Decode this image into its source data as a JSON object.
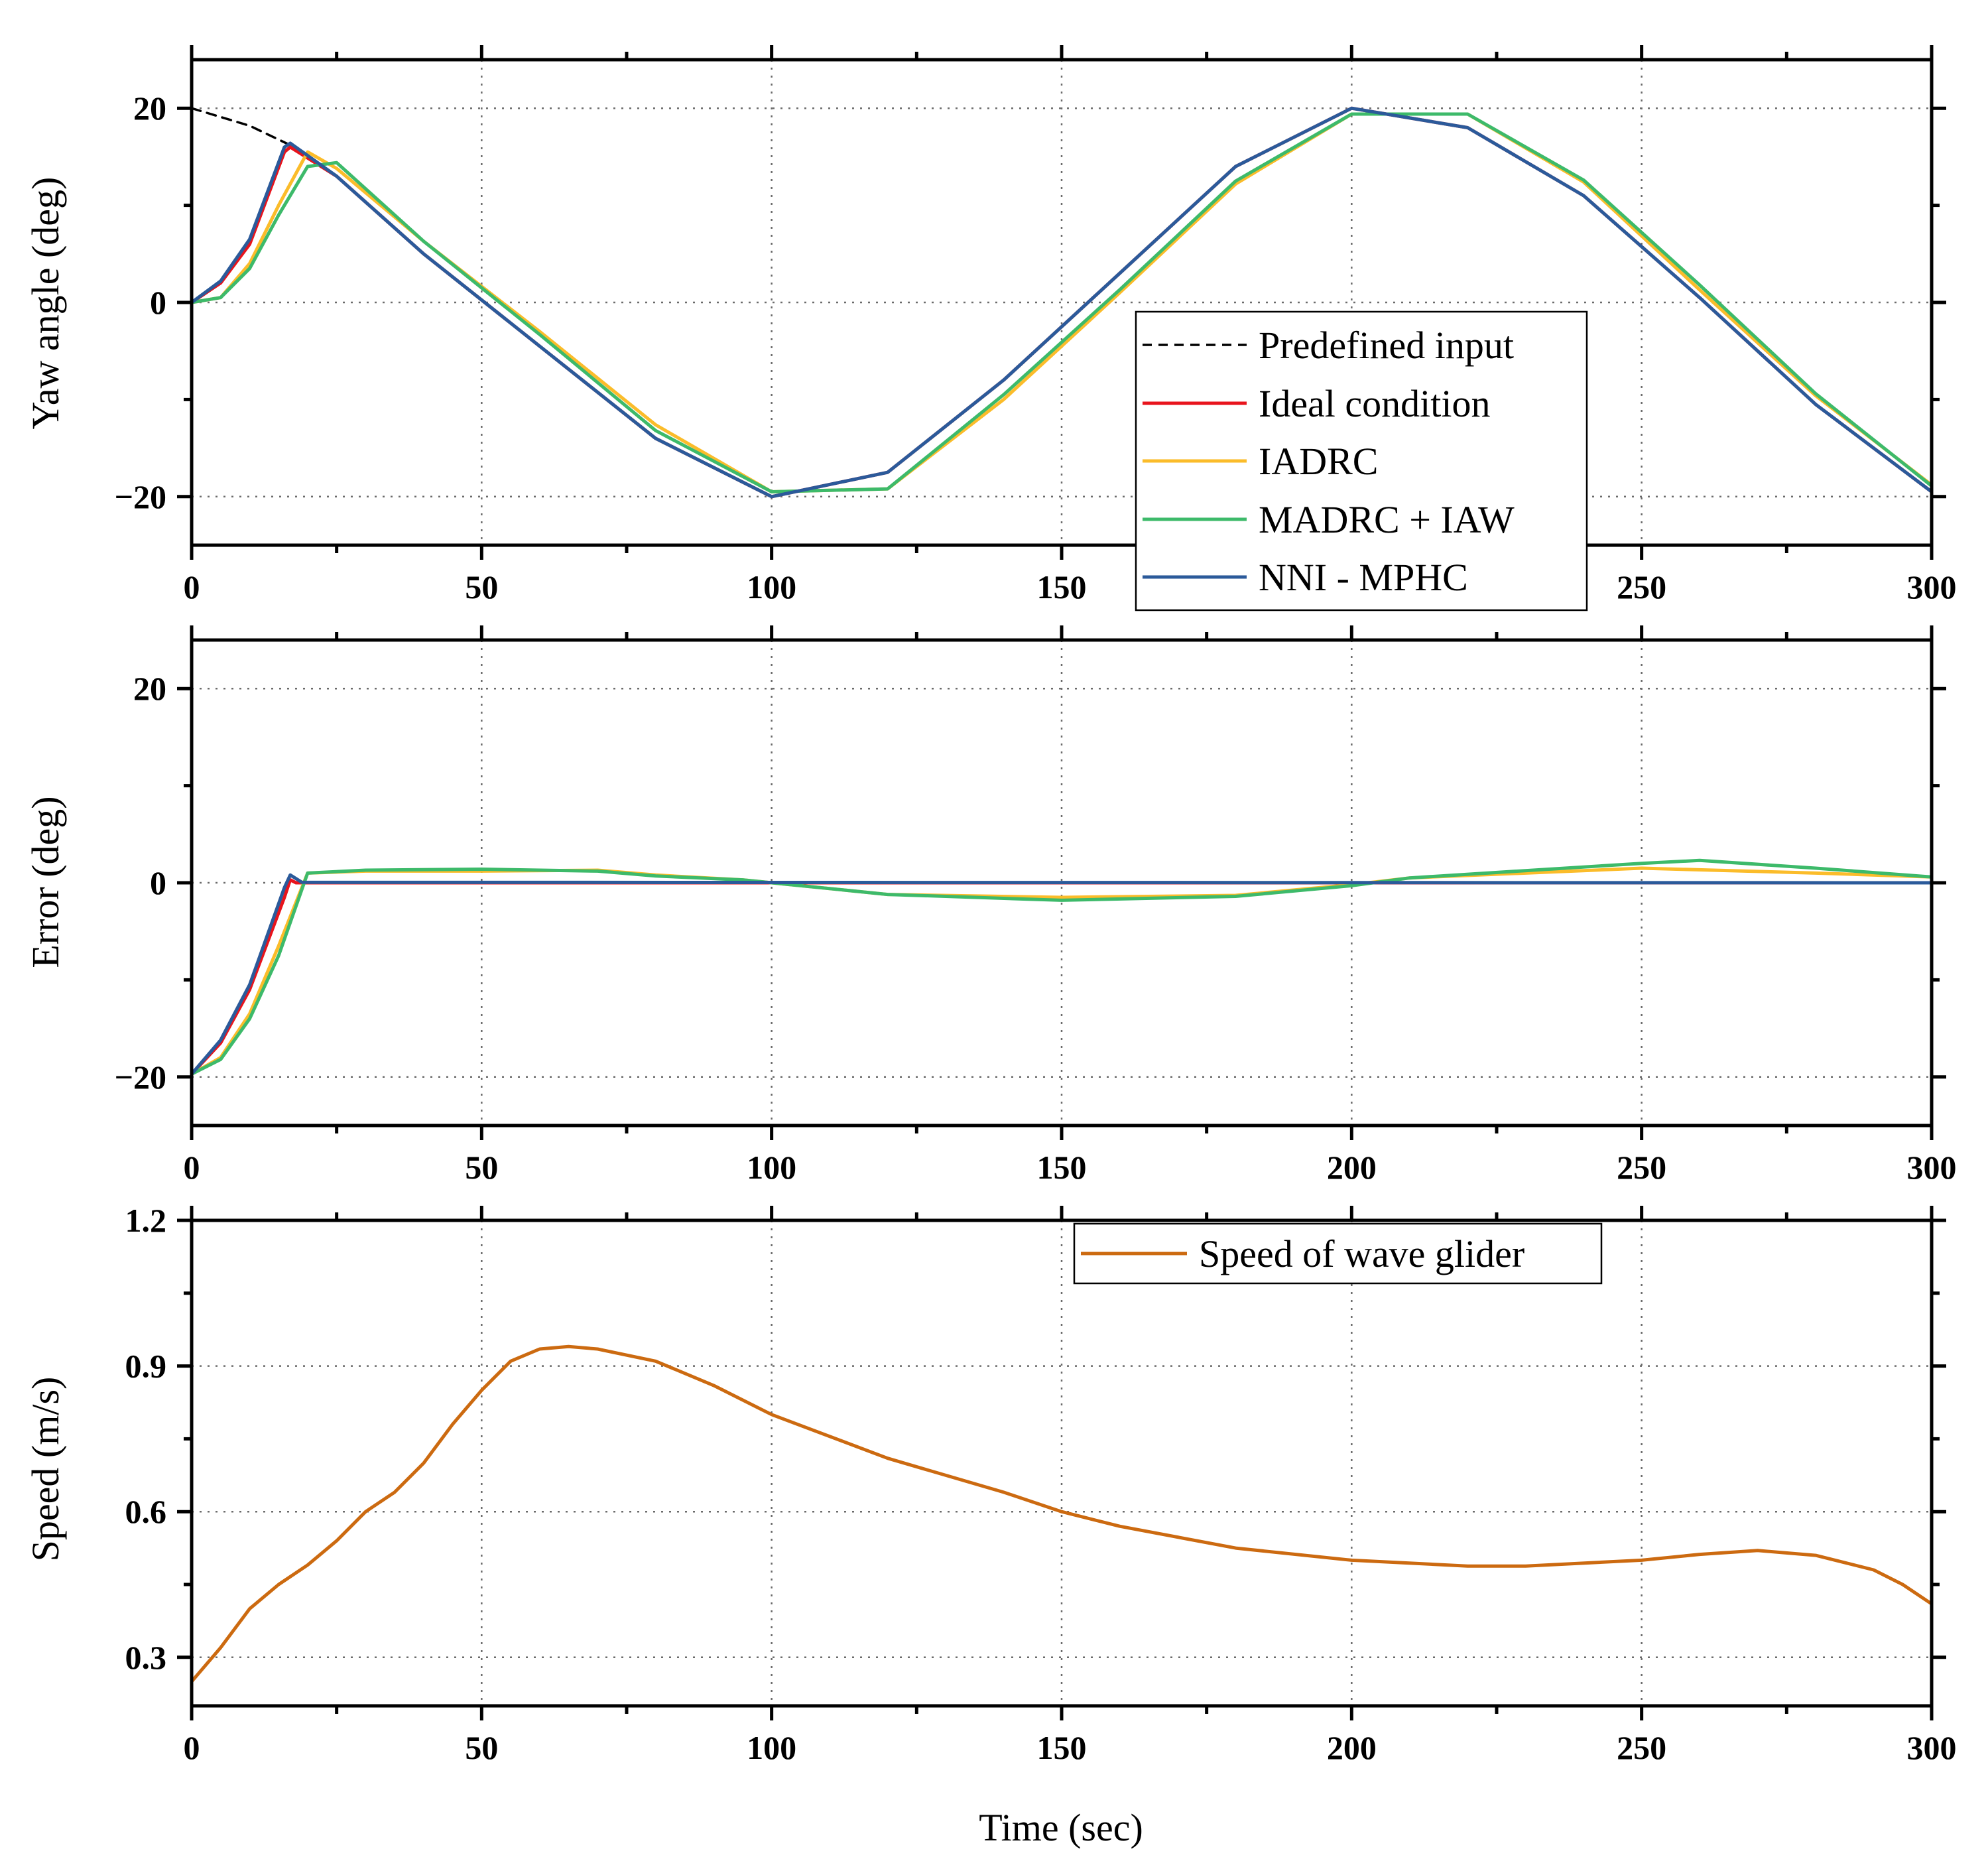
{
  "chart_data": [
    {
      "type": "line",
      "ylabel": "Yaw angle (deg)",
      "xlim": [
        0,
        300
      ],
      "ylim": [
        -25,
        25
      ],
      "xticks": [
        0,
        50,
        100,
        150,
        200,
        250,
        300
      ],
      "yticks": [
        -20,
        0,
        20
      ],
      "ytick_labels": [
        "−20",
        "0",
        "20"
      ],
      "legend_position": "center-right",
      "series": [
        {
          "name": "Predefined input",
          "color": "#000000",
          "style": "dashed",
          "x": [
            0,
            10,
            17,
            25,
            40,
            60,
            80,
            100,
            120,
            140,
            160,
            180,
            200,
            220,
            240,
            260,
            280,
            300
          ],
          "values": [
            20,
            18.2,
            16.2,
            13,
            5,
            -4.5,
            -14,
            -20,
            -17.5,
            -8,
            3,
            14,
            20,
            18,
            11,
            0.5,
            -10.5,
            -19.5
          ]
        },
        {
          "name": "Ideal condition",
          "color": "#e8141c",
          "style": "solid",
          "x": [
            0,
            5,
            10,
            16,
            17,
            25,
            40,
            60,
            80,
            100,
            120,
            140,
            160,
            180,
            200,
            220,
            240,
            260,
            280,
            300
          ],
          "values": [
            0,
            2,
            6,
            15.5,
            16,
            13,
            5,
            -4.5,
            -14,
            -20,
            -17.5,
            -8,
            3,
            14,
            20,
            18,
            11,
            0.5,
            -10.5,
            -19.5
          ]
        },
        {
          "name": "IADRC",
          "color": "#fbbc2a",
          "style": "solid",
          "x": [
            0,
            5,
            10,
            15,
            20,
            25,
            40,
            60,
            80,
            100,
            120,
            140,
            160,
            180,
            200,
            220,
            240,
            260,
            280,
            300
          ],
          "values": [
            0,
            0.5,
            4,
            10,
            15.5,
            13.8,
            6.3,
            -3,
            -12.6,
            -19.5,
            -19.2,
            -10,
            1,
            12.2,
            19.4,
            19.4,
            12.4,
            1.3,
            -9.6,
            -18.8
          ]
        },
        {
          "name": "MADRC + IAW",
          "color": "#3dba6a",
          "style": "solid",
          "x": [
            0,
            5,
            10,
            15,
            20,
            25,
            40,
            60,
            80,
            100,
            120,
            140,
            160,
            180,
            200,
            220,
            240,
            260,
            280,
            300
          ],
          "values": [
            0,
            0.5,
            3.5,
            9,
            14,
            14.4,
            6.3,
            -3.3,
            -13.2,
            -19.5,
            -19.2,
            -9.5,
            1.3,
            12.5,
            19.4,
            19.4,
            12.6,
            1.8,
            -9.4,
            -18.9
          ]
        },
        {
          "name": "NNI - MPHC",
          "color": "#2b5a9a",
          "style": "solid",
          "x": [
            0,
            5,
            10,
            16,
            17,
            25,
            40,
            60,
            80,
            100,
            120,
            140,
            160,
            180,
            200,
            220,
            240,
            260,
            280,
            300
          ],
          "values": [
            0,
            2.2,
            6.5,
            16,
            16.4,
            13,
            5,
            -4.5,
            -14,
            -20,
            -17.5,
            -8,
            3,
            14,
            20,
            18,
            11,
            0.5,
            -10.5,
            -19.5
          ]
        }
      ]
    },
    {
      "type": "line",
      "ylabel": "Error (deg)",
      "xlim": [
        0,
        300
      ],
      "ylim": [
        -25,
        25
      ],
      "xticks": [
        0,
        50,
        100,
        150,
        200,
        250,
        300
      ],
      "yticks": [
        -20,
        0,
        20
      ],
      "ytick_labels": [
        "−20",
        "0",
        "20"
      ],
      "series": [
        {
          "name": "Ideal condition",
          "color": "#e8141c",
          "x": [
            0,
            5,
            10,
            16,
            17,
            18,
            300
          ],
          "values": [
            -19.7,
            -16.5,
            -11,
            -1.5,
            0.3,
            0,
            0
          ]
        },
        {
          "name": "IADRC",
          "color": "#fbbc2a",
          "x": [
            0,
            5,
            10,
            15,
            20,
            30,
            50,
            70,
            80,
            95,
            100,
            120,
            150,
            180,
            200,
            210,
            250,
            280,
            300
          ],
          "values": [
            -19.7,
            -18,
            -13.5,
            -6.5,
            1,
            1.2,
            1.2,
            1.3,
            0.8,
            0.3,
            0,
            -1.2,
            -1.5,
            -1.3,
            -0.2,
            0.5,
            1.5,
            1,
            0.6
          ]
        },
        {
          "name": "MADRC + IAW",
          "color": "#3dba6a",
          "x": [
            0,
            5,
            10,
            15,
            20,
            30,
            50,
            70,
            80,
            95,
            100,
            120,
            150,
            180,
            200,
            210,
            250,
            260,
            280,
            300
          ],
          "values": [
            -19.7,
            -18.2,
            -14,
            -7.5,
            1,
            1.3,
            1.4,
            1.2,
            0.7,
            0.3,
            0,
            -1.2,
            -1.8,
            -1.4,
            -0.3,
            0.5,
            2,
            2.3,
            1.5,
            0.6
          ]
        },
        {
          "name": "NNI - MPHC",
          "color": "#2b5a9a",
          "x": [
            0,
            5,
            10,
            16,
            17,
            19,
            300
          ],
          "values": [
            -19.7,
            -16.2,
            -10.5,
            -0.5,
            0.8,
            0.05,
            0
          ]
        }
      ]
    },
    {
      "type": "line",
      "ylabel": "Speed (m/s)",
      "xlabel": "Time (sec)",
      "xlim": [
        0,
        300
      ],
      "ylim": [
        0.2,
        1.2
      ],
      "xticks": [
        0,
        50,
        100,
        150,
        200,
        250,
        300
      ],
      "yticks": [
        0.3,
        0.6,
        0.9,
        1.2
      ],
      "ytick_labels": [
        "0.3",
        "0.6",
        "0.9",
        "1.2"
      ],
      "legend_position": "top-right",
      "series": [
        {
          "name": "Speed of wave glider",
          "color": "#cc6a10",
          "x": [
            0,
            5,
            10,
            15,
            20,
            25,
            30,
            35,
            40,
            45,
            50,
            55,
            60,
            65,
            70,
            80,
            90,
            100,
            120,
            140,
            150,
            160,
            180,
            200,
            220,
            230,
            250,
            260,
            270,
            280,
            290,
            295,
            300
          ],
          "values": [
            0.25,
            0.32,
            0.4,
            0.45,
            0.49,
            0.54,
            0.6,
            0.64,
            0.7,
            0.78,
            0.85,
            0.91,
            0.935,
            0.94,
            0.935,
            0.91,
            0.86,
            0.8,
            0.71,
            0.64,
            0.6,
            0.57,
            0.525,
            0.5,
            0.488,
            0.488,
            0.5,
            0.512,
            0.52,
            0.51,
            0.48,
            0.45,
            0.41
          ]
        }
      ]
    }
  ]
}
